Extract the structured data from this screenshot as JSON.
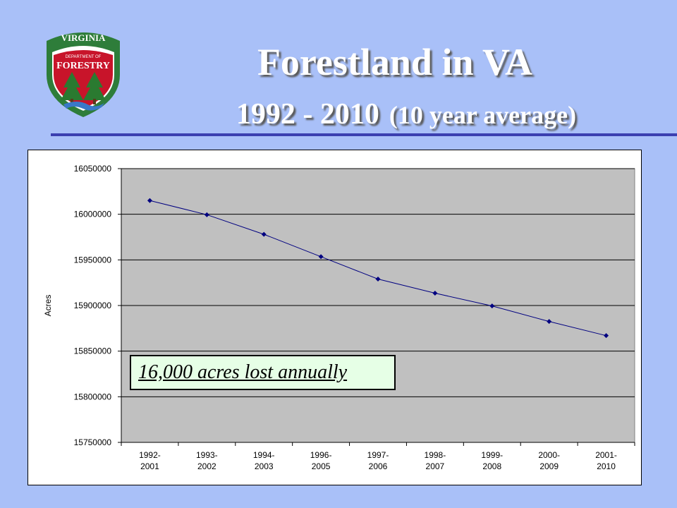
{
  "logo": {
    "top_text": "VIRGINIA",
    "middle_text": "DEPARTMENT OF",
    "bottom_text": "FORESTRY",
    "colors": {
      "ring": "#2e7d3a",
      "band": "#c8142a",
      "tree": "#2a7a30",
      "water": "#3a78c8"
    }
  },
  "title": {
    "main": "Forestland in VA",
    "years": "1992 - 2010",
    "note": "(10 year average)"
  },
  "annotation": "16,000 acres lost annually",
  "chart_data": {
    "type": "line",
    "categories": [
      "1992-\n2001",
      "1993-\n2002",
      "1994-\n2003",
      "1996-\n2005",
      "1997-\n2006",
      "1998-\n2007",
      "1999-\n2008",
      "2000-\n2009",
      "2001-\n2010"
    ],
    "series": [
      {
        "values": [
          16015000,
          15999500,
          15978000,
          15953500,
          15929000,
          15913500,
          15899500,
          15882500,
          15867000
        ]
      }
    ],
    "xlabel": "",
    "ylabel": "Acres",
    "ylim": [
      15750000,
      16050000
    ],
    "yticks": [
      15750000,
      15800000,
      15850000,
      15900000,
      15950000,
      16000000,
      16050000
    ],
    "grid": true,
    "colors": {
      "plot_bg": "#c0c0c0",
      "line": "#000080",
      "marker": "#000080"
    }
  }
}
